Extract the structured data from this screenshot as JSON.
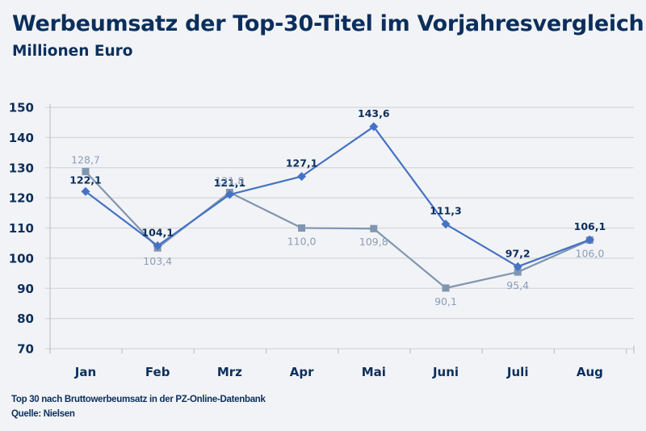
{
  "header": {
    "title": "Werbeumsatz der Top-30-Titel im Vorjahresvergleich",
    "subtitle": "Millionen Euro"
  },
  "footer": {
    "note": "Top 30 nach Bruttowerbeumsatz in der PZ-Online-Datenbank",
    "source": "Quelle: Nielsen"
  },
  "chart_data": {
    "type": "line",
    "title": "Werbeumsatz der Top-30-Titel im Vorjahresvergleich",
    "subtitle": "Millionen Euro",
    "xlabel": "",
    "ylabel": "",
    "categories": [
      "Jan",
      "Feb",
      "Mrz",
      "Apr",
      "Mai",
      "Juni",
      "Juli",
      "Aug"
    ],
    "ylim": [
      70,
      150
    ],
    "yticks": [
      70,
      80,
      90,
      100,
      110,
      120,
      130,
      140,
      150
    ],
    "grid": true,
    "legend": "none",
    "series": [
      {
        "name": "current-year",
        "color": "#4472c4",
        "marker": "diamond",
        "values": [
          122.1,
          104.1,
          121.1,
          127.1,
          143.6,
          111.3,
          97.2,
          106.1
        ],
        "labels": [
          "122,1",
          "104,1",
          "121,1",
          "127,1",
          "143,6",
          "111,3",
          "97,2",
          "106,1"
        ],
        "label_color": "#0b2f5c"
      },
      {
        "name": "previous-year",
        "color": "#8096b0",
        "marker": "square",
        "values": [
          128.7,
          103.4,
          121.8,
          110.0,
          109.8,
          90.1,
          95.4,
          106.0
        ],
        "labels": [
          "128,7",
          "103,4",
          "121,8",
          "110,0",
          "109,8",
          "90,1",
          "95,4",
          "106,0"
        ],
        "label_color": "#8a9db8"
      }
    ]
  }
}
